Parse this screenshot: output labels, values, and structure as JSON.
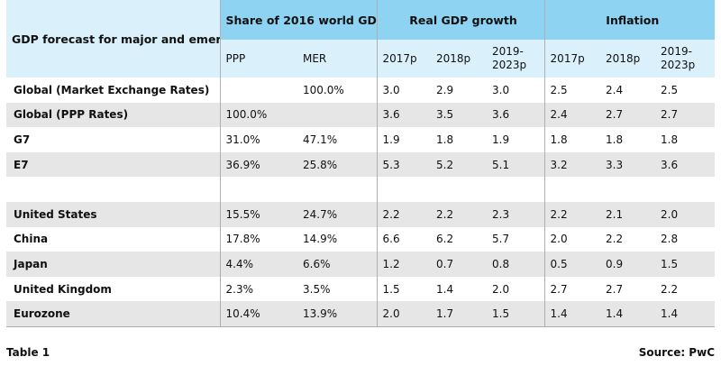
{
  "header": {
    "corner_label": "GDP forecast for major and emerging economies",
    "groups": [
      "Share of 2016 world GDP",
      "Real GDP growth",
      "Inflation"
    ],
    "subcols": [
      "PPP",
      "MER",
      "2017p",
      "2018p",
      "2019-2023p",
      "2017p",
      "2018p",
      "2019-2023p"
    ]
  },
  "rows": [
    {
      "label": "Global (Market Exchange Rates)",
      "cells": [
        "",
        "100.0%",
        "3.0",
        "2.9",
        "3.0",
        "2.5",
        "2.4",
        "2.5"
      ]
    },
    {
      "label": "Global (PPP Rates)",
      "cells": [
        "100.0%",
        "",
        "3.6",
        "3.5",
        "3.6",
        "2.4",
        "2.7",
        "2.7"
      ]
    },
    {
      "label": "G7",
      "cells": [
        "31.0%",
        "47.1%",
        "1.9",
        "1.8",
        "1.9",
        "1.8",
        "1.8",
        "1.8"
      ]
    },
    {
      "label": "E7",
      "cells": [
        "36.9%",
        "25.8%",
        "5.3",
        "5.2",
        "5.1",
        "3.2",
        "3.3",
        "3.6"
      ]
    },
    {
      "label": "",
      "cells": [
        "",
        "",
        "",
        "",
        "",
        "",
        "",
        ""
      ]
    },
    {
      "label": "United States",
      "cells": [
        "15.5%",
        "24.7%",
        "2.2",
        "2.2",
        "2.3",
        "2.2",
        "2.1",
        "2.0"
      ]
    },
    {
      "label": "China",
      "cells": [
        "17.8%",
        "14.9%",
        "6.6",
        "6.2",
        "5.7",
        "2.0",
        "2.2",
        "2.8"
      ]
    },
    {
      "label": "Japan",
      "cells": [
        "4.4%",
        "6.6%",
        "1.2",
        "0.7",
        "0.8",
        "0.5",
        "0.9",
        "1.5"
      ]
    },
    {
      "label": "United Kingdom",
      "cells": [
        "2.3%",
        "3.5%",
        "1.5",
        "1.4",
        "2.0",
        "2.7",
        "2.7",
        "2.2"
      ]
    },
    {
      "label": "Eurozone",
      "cells": [
        "10.4%",
        "13.9%",
        "2.0",
        "1.7",
        "1.5",
        "1.4",
        "1.4",
        "1.4"
      ]
    }
  ],
  "footer": {
    "caption": "Table 1",
    "source": "Source: PwC"
  },
  "colors": {
    "header_dark": "#8fd3f2",
    "header_light": "#daf0fb",
    "row_stripe": "#e6e6e6"
  }
}
